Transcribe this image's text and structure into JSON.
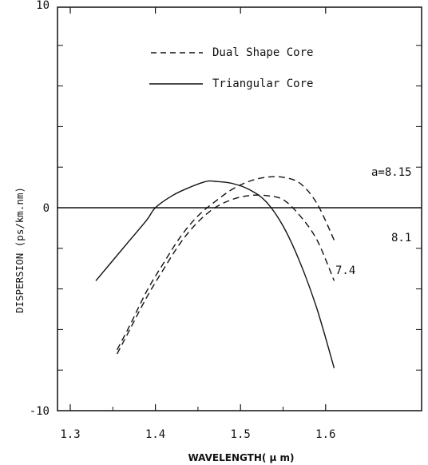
{
  "chart_data": {
    "type": "line",
    "xlabel": "WAVELENGTH( μ m)",
    "ylabel": "DISPERSION (ps/km.nm)",
    "xlim": [
      1.3,
      1.62
    ],
    "ylim": [
      -10,
      10
    ],
    "xticks": [
      1.3,
      1.4,
      1.5,
      1.6
    ],
    "xtick_labels": [
      "1.3",
      "1.4",
      "1.5",
      "1.6"
    ],
    "yticks": [
      10,
      0,
      -10
    ],
    "ytick_labels": [
      "10",
      "0",
      "-10"
    ],
    "grid": false,
    "legend_position": "top-center",
    "legend": [
      {
        "label": "Dual Shape Core",
        "style": "dashed"
      },
      {
        "label": "Triangular Core",
        "style": "solid"
      }
    ],
    "series": [
      {
        "legend": "Triangular Core",
        "style": "solid",
        "annotation": "7.4",
        "x": [
          1.33,
          1.35,
          1.37,
          1.39,
          1.4,
          1.42,
          1.44,
          1.46,
          1.47,
          1.49,
          1.51,
          1.53,
          1.55,
          1.57,
          1.59,
          1.61
        ],
        "y": [
          -3.6,
          -2.6,
          -1.6,
          -0.6,
          0.0,
          0.6,
          1.0,
          1.3,
          1.3,
          1.2,
          0.9,
          0.3,
          -0.9,
          -2.7,
          -5.0,
          -7.9
        ]
      },
      {
        "legend": "Dual Shape Core",
        "style": "dashed",
        "annotation": "a=8.15",
        "x": [
          1.355,
          1.37,
          1.39,
          1.41,
          1.43,
          1.45,
          1.47,
          1.49,
          1.51,
          1.53,
          1.55,
          1.57,
          1.59,
          1.61
        ],
        "y": [
          -7.0,
          -5.8,
          -4.1,
          -2.7,
          -1.4,
          -0.4,
          0.3,
          0.9,
          1.3,
          1.5,
          1.5,
          1.2,
          0.2,
          -1.6
        ]
      },
      {
        "legend": "Dual Shape Core",
        "style": "dashed",
        "annotation": "8.1",
        "x": [
          1.355,
          1.37,
          1.39,
          1.41,
          1.43,
          1.45,
          1.47,
          1.49,
          1.51,
          1.53,
          1.55,
          1.57,
          1.59,
          1.61
        ],
        "y": [
          -7.2,
          -6.0,
          -4.4,
          -3.0,
          -1.7,
          -0.7,
          0.0,
          0.4,
          0.6,
          0.6,
          0.4,
          -0.4,
          -1.6,
          -3.6
        ]
      }
    ]
  }
}
